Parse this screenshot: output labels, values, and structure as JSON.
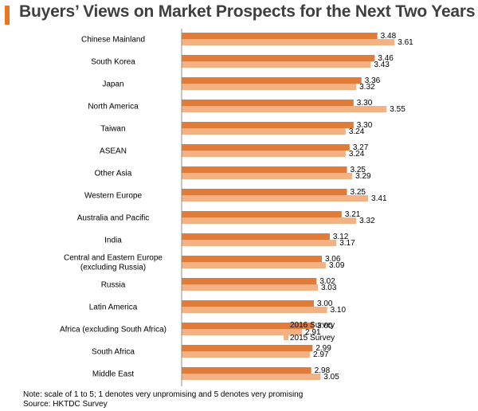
{
  "title": "Buyers’ Views on Market Prospects for the Next Two Years",
  "colors": {
    "accent_bar": "#e87722",
    "series_2016": "#e07b39",
    "series_2015": "#f4b183",
    "title_text": "#3f3f3f"
  },
  "chart_data": {
    "type": "bar",
    "orientation": "horizontal",
    "title": "Buyers’ Views on Market Prospects for the Next Two Years",
    "xlabel": "",
    "ylabel": "",
    "xlim": [
      2.0,
      4.0
    ],
    "grid": false,
    "legend_position": "bottom-right",
    "categories": [
      [
        "Chinese Mainland"
      ],
      [
        "South Korea"
      ],
      [
        "Japan"
      ],
      [
        "North America"
      ],
      [
        "Taiwan"
      ],
      [
        "ASEAN"
      ],
      [
        "Other Asia"
      ],
      [
        "Western Europe"
      ],
      [
        "Australia and Pacific"
      ],
      [
        "India"
      ],
      [
        "Central and Eastern Europe",
        "(excluding Russia)"
      ],
      [
        "Russia"
      ],
      [
        "Latin America"
      ],
      [
        "Africa (excluding South Africa)"
      ],
      [
        "South Africa"
      ],
      [
        "Middle East"
      ]
    ],
    "series": [
      {
        "name": "2016 Survey",
        "color": "#e07b39",
        "values": [
          3.48,
          3.46,
          3.36,
          3.3,
          3.3,
          3.27,
          3.25,
          3.25,
          3.21,
          3.12,
          3.06,
          3.02,
          3.0,
          3.0,
          2.99,
          2.98
        ]
      },
      {
        "name": "2015 Survey",
        "color": "#f4b183",
        "values": [
          3.61,
          3.43,
          3.32,
          3.55,
          3.24,
          3.24,
          3.29,
          3.41,
          3.32,
          3.17,
          3.09,
          3.03,
          3.1,
          2.91,
          2.97,
          3.05
        ]
      }
    ]
  },
  "footnotes": {
    "note": "Note: scale of 1 to 5; 1 denotes very unpromising and 5 denotes very promising",
    "source": "Source: HKTDC Survey"
  }
}
